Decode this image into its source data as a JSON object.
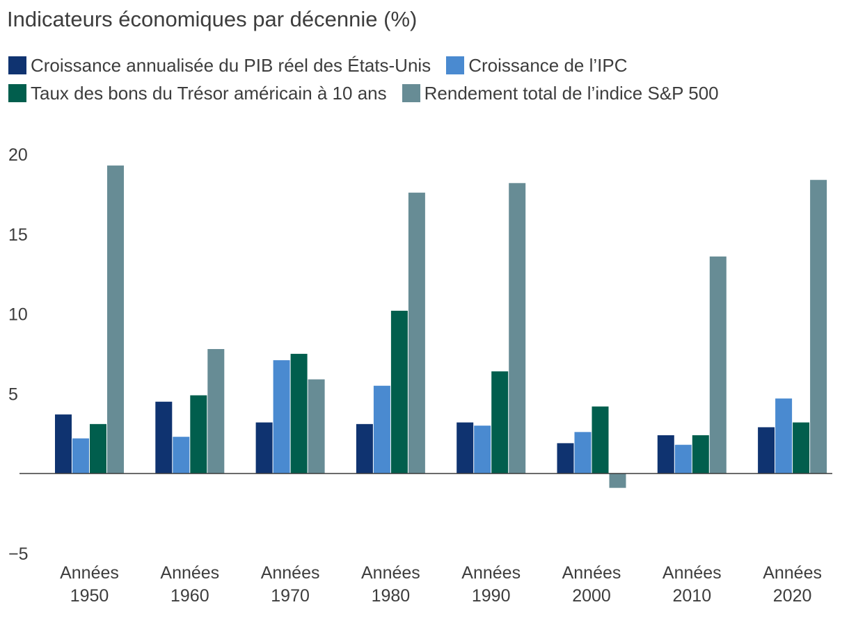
{
  "title": "Indicateurs économiques par décennie (%)",
  "chart_data": {
    "type": "bar",
    "categories": [
      [
        "Années",
        "1950"
      ],
      [
        "Années",
        "1960"
      ],
      [
        "Années",
        "1970"
      ],
      [
        "Années",
        "1980"
      ],
      [
        "Années",
        "1990"
      ],
      [
        "Années",
        "2000"
      ],
      [
        "Années",
        "2010"
      ],
      [
        "Années",
        "2020"
      ]
    ],
    "series": [
      {
        "name": "Croissance annualisée du PIB réel des États-Unis",
        "color": "#0f3370",
        "values": [
          3.7,
          4.5,
          3.2,
          3.1,
          3.2,
          1.9,
          2.4,
          2.9
        ]
      },
      {
        "name": "Croissance de l’IPC",
        "color": "#4a8ad0",
        "values": [
          2.2,
          2.3,
          7.1,
          5.5,
          3.0,
          2.6,
          1.8,
          4.7
        ]
      },
      {
        "name": "Taux des bons du Trésor américain à 10 ans",
        "color": "#015e4d",
        "values": [
          3.1,
          4.9,
          7.5,
          10.2,
          6.4,
          4.2,
          2.4,
          3.2
        ]
      },
      {
        "name": "Rendement total de l’indice S&P 500",
        "color": "#678c95",
        "values": [
          19.3,
          7.8,
          5.9,
          17.6,
          18.2,
          -0.9,
          13.6,
          18.4
        ]
      }
    ],
    "ylim": [
      -5,
      20
    ],
    "yticks": [
      20,
      15,
      10,
      5,
      -5
    ],
    "ytick_labels": [
      "20",
      "15",
      "10",
      "5",
      "−5"
    ],
    "xlabel": "",
    "ylabel": "",
    "grid": false,
    "legend_position": "top-left"
  }
}
